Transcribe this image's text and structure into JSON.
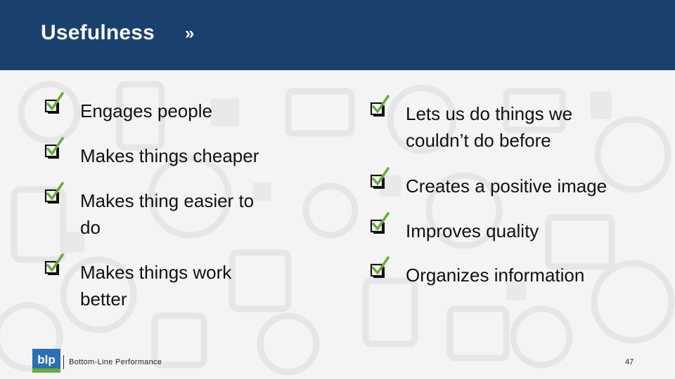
{
  "header": {
    "title": "Usefulness",
    "arrow": "»"
  },
  "left_items": [
    {
      "lines": [
        "Engages people"
      ]
    },
    {
      "lines": [
        "Makes things cheaper"
      ]
    },
    {
      "lines": [
        "Makes thing easier to",
        "do"
      ]
    },
    {
      "lines": [
        "Makes things work",
        "better"
      ]
    }
  ],
  "right_items": [
    {
      "lines": [
        "Lets us do things we",
        "couldn’t do before"
      ]
    },
    {
      "lines": [
        "Creates a positive image"
      ]
    },
    {
      "lines": [
        "Improves quality"
      ]
    },
    {
      "lines": [
        "Organizes information"
      ]
    }
  ],
  "footer": {
    "logo_text": "blp",
    "company": "Bottom-Line Performance",
    "page_number": "47"
  },
  "colors": {
    "header_bg": "#1a416d",
    "check_green": "#6aab3a",
    "logo_blue": "#2c6fb3",
    "logo_green": "#6aab3a"
  },
  "icons": [
    "checkbox-icon",
    "checkmark-icon",
    "blp-logo"
  ]
}
